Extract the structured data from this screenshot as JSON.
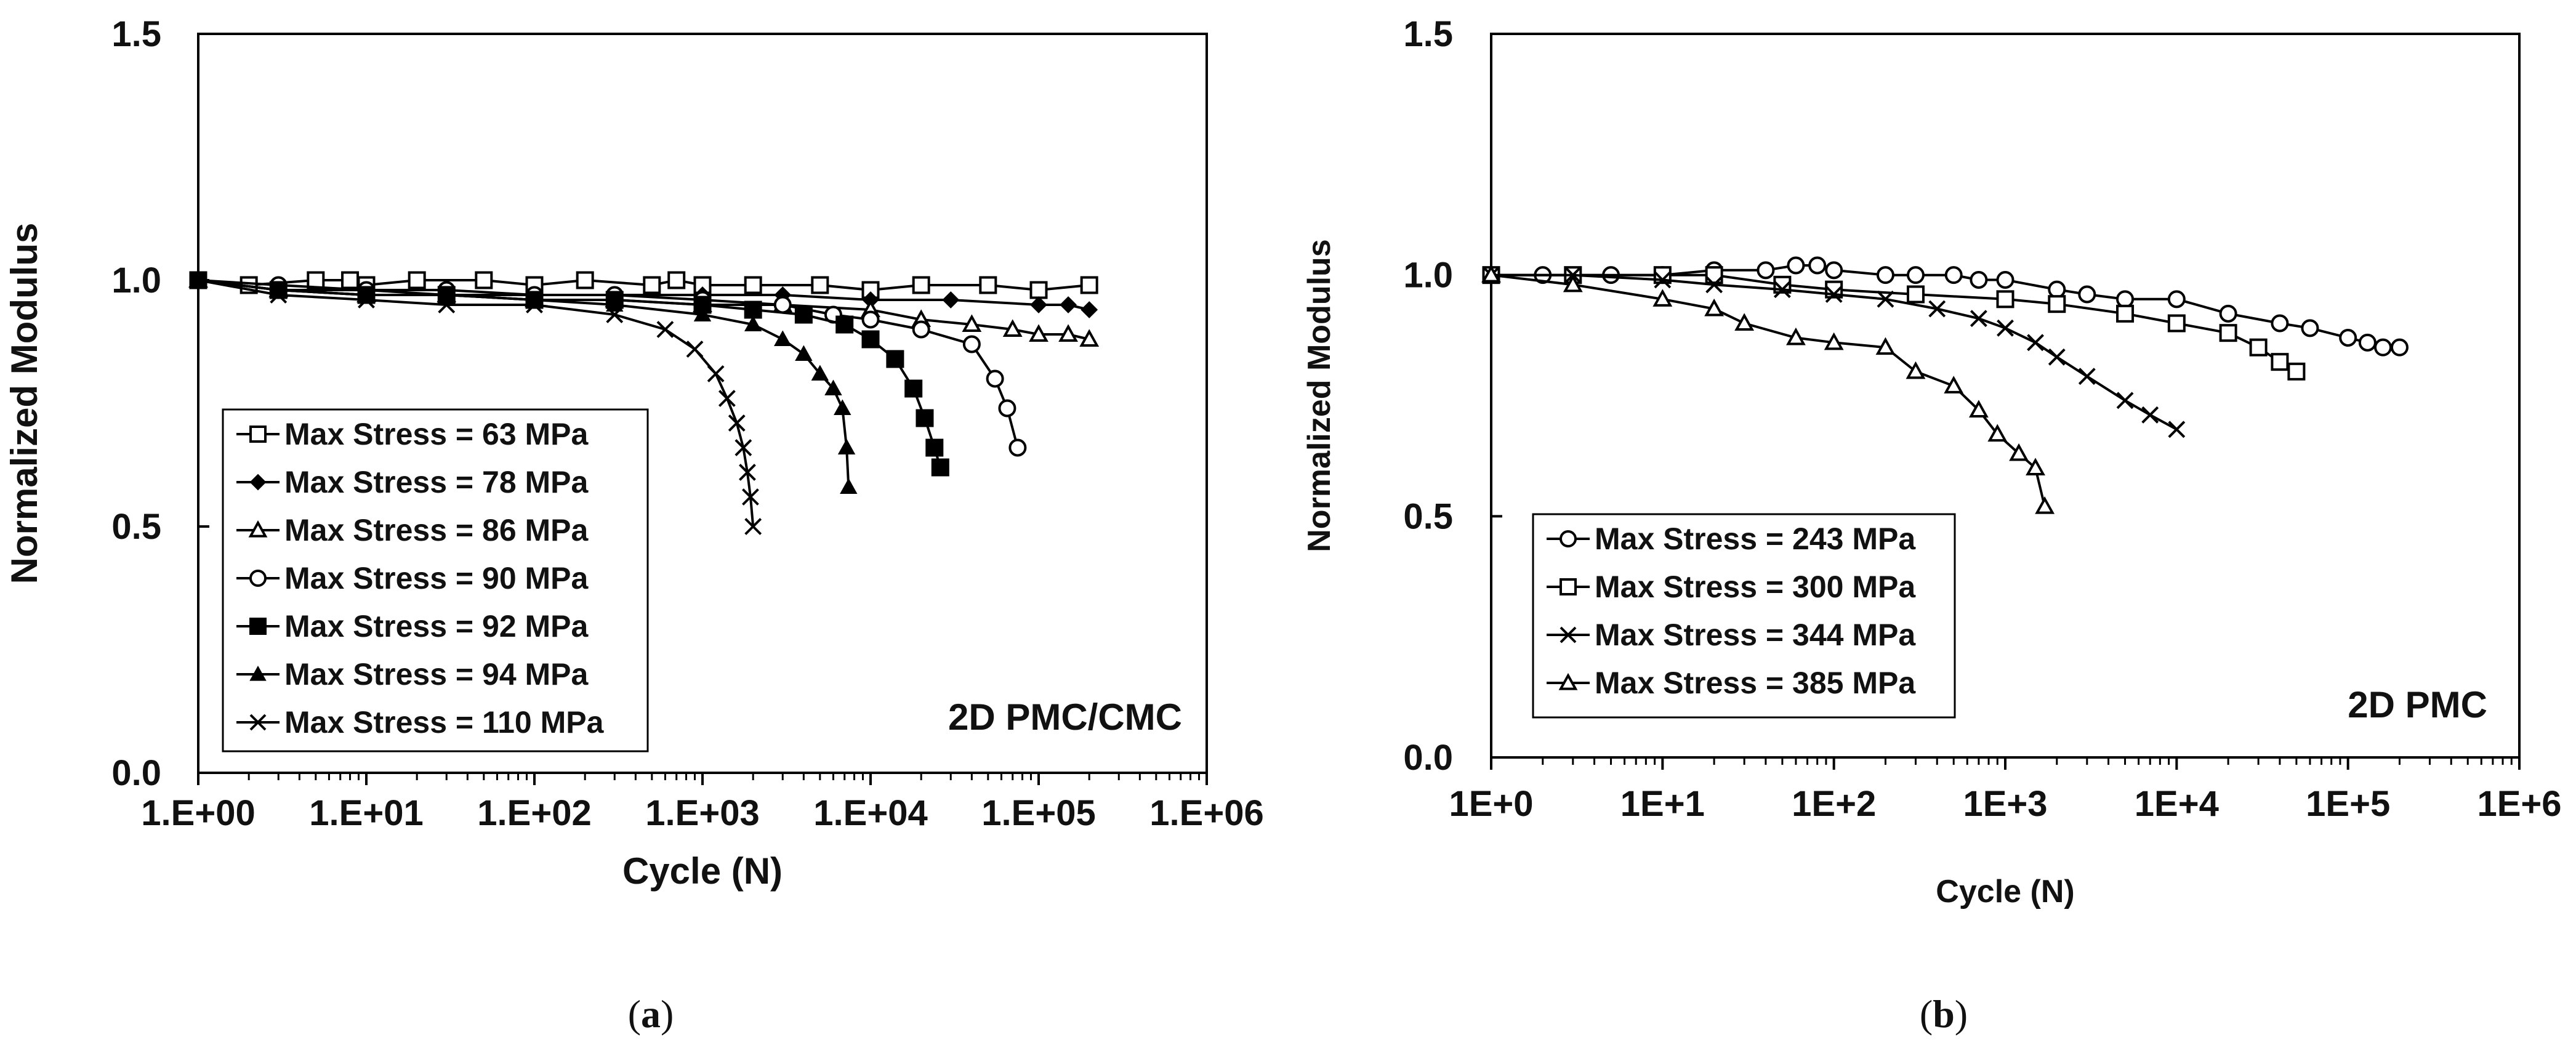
{
  "chart_data": [
    {
      "type": "line",
      "panel_label": "a",
      "xlabel": "Cycle (N)",
      "ylabel": "Normalized Modulus",
      "xscale": "log",
      "xlim": [
        1,
        1000000
      ],
      "ylim": [
        0.0,
        1.5
      ],
      "xticks": [
        1,
        10,
        100,
        1000,
        10000,
        100000,
        1000000
      ],
      "xtick_labels": [
        "1.E+00",
        "1.E+01",
        "1.E+02",
        "1.E+03",
        "1.E+04",
        "1.E+05",
        "1.E+06"
      ],
      "yticks": [
        0.0,
        0.5,
        1.0,
        1.5
      ],
      "ytick_labels": [
        "0.0",
        "0.5",
        "1.0",
        "1.5"
      ],
      "annotation": "2D PMC/CMC",
      "legend_position": "bottom-left",
      "series": [
        {
          "name": "Max Stress = 63 MPa",
          "marker": "open-square",
          "x": [
            1,
            2,
            5,
            8,
            10,
            20,
            50,
            100,
            200,
            500,
            700,
            1000,
            2000,
            5000,
            10000,
            20000,
            50000,
            100000,
            200000
          ],
          "y": [
            1.0,
            0.99,
            1.0,
            1.0,
            0.99,
            1.0,
            1.0,
            0.99,
            1.0,
            0.99,
            1.0,
            0.99,
            0.99,
            0.99,
            0.98,
            0.99,
            0.99,
            0.98,
            0.99
          ]
        },
        {
          "name": "Max Stress = 78 MPa",
          "marker": "filled-diamond",
          "x": [
            1,
            3,
            10,
            30,
            100,
            300,
            1000,
            3000,
            10000,
            30000,
            100000,
            150000,
            200000
          ],
          "y": [
            1.0,
            0.98,
            0.98,
            0.97,
            0.97,
            0.97,
            0.97,
            0.97,
            0.96,
            0.96,
            0.95,
            0.95,
            0.94
          ]
        },
        {
          "name": "Max Stress = 86 MPa",
          "marker": "open-triangle",
          "x": [
            1,
            3,
            10,
            30,
            100,
            300,
            1000,
            3000,
            10000,
            20000,
            40000,
            70000,
            100000,
            150000,
            200000
          ],
          "y": [
            1.0,
            0.98,
            0.97,
            0.97,
            0.96,
            0.96,
            0.95,
            0.95,
            0.94,
            0.92,
            0.91,
            0.9,
            0.89,
            0.89,
            0.88
          ]
        },
        {
          "name": "Max Stress = 90 MPa",
          "marker": "open-circle",
          "x": [
            1,
            3,
            10,
            30,
            100,
            300,
            1000,
            3000,
            6000,
            10000,
            20000,
            40000,
            55000,
            65000,
            75000
          ],
          "y": [
            1.0,
            0.99,
            0.98,
            0.98,
            0.97,
            0.97,
            0.96,
            0.95,
            0.93,
            0.92,
            0.9,
            0.87,
            0.8,
            0.74,
            0.66
          ]
        },
        {
          "name": "Max Stress = 92 MPa",
          "marker": "filled-square",
          "x": [
            1,
            3,
            10,
            30,
            100,
            300,
            1000,
            2000,
            4000,
            7000,
            10000,
            14000,
            18000,
            21000,
            24000,
            26000
          ],
          "y": [
            1.0,
            0.98,
            0.97,
            0.97,
            0.96,
            0.96,
            0.95,
            0.94,
            0.93,
            0.91,
            0.88,
            0.84,
            0.78,
            0.72,
            0.66,
            0.62
          ]
        },
        {
          "name": "Max Stress = 94 MPa",
          "marker": "filled-triangle",
          "x": [
            1,
            3,
            10,
            30,
            100,
            300,
            1000,
            2000,
            3000,
            4000,
            5000,
            6000,
            6800,
            7200,
            7400
          ],
          "y": [
            1.0,
            0.98,
            0.97,
            0.97,
            0.96,
            0.95,
            0.93,
            0.91,
            0.88,
            0.85,
            0.81,
            0.78,
            0.74,
            0.66,
            0.58
          ]
        },
        {
          "name": "Max Stress = 110 MPa",
          "marker": "x",
          "x": [
            1,
            3,
            10,
            30,
            100,
            300,
            600,
            900,
            1200,
            1400,
            1600,
            1750,
            1850,
            1930,
            2000
          ],
          "y": [
            1.0,
            0.97,
            0.96,
            0.95,
            0.95,
            0.93,
            0.9,
            0.86,
            0.81,
            0.76,
            0.71,
            0.66,
            0.61,
            0.56,
            0.5
          ]
        }
      ]
    },
    {
      "type": "line",
      "panel_label": "b",
      "xlabel": "Cycle (N)",
      "ylabel": "Normalized Modulus",
      "xscale": "log",
      "xlim": [
        1,
        1000000
      ],
      "ylim": [
        0.0,
        1.5
      ],
      "xticks": [
        1,
        10,
        100,
        1000,
        10000,
        100000,
        1000000
      ],
      "xtick_labels": [
        "1E+0",
        "1E+1",
        "1E+2",
        "1E+3",
        "1E+4",
        "1E+5",
        "1E+6"
      ],
      "yticks": [
        0.0,
        0.5,
        1.0,
        1.5
      ],
      "ytick_labels": [
        "0.0",
        "0.5",
        "1.0",
        "1.5"
      ],
      "annotation": "2D PMC",
      "legend_position": "bottom-left",
      "series": [
        {
          "name": "Max Stress = 243 MPa",
          "marker": "open-circle",
          "x": [
            1,
            2,
            5,
            10,
            20,
            40,
            60,
            80,
            100,
            200,
            300,
            500,
            700,
            1000,
            2000,
            3000,
            5000,
            10000,
            20000,
            40000,
            60000,
            100000,
            130000,
            160000,
            200000
          ],
          "y": [
            1.0,
            1.0,
            1.0,
            1.0,
            1.01,
            1.01,
            1.02,
            1.02,
            1.01,
            1.0,
            1.0,
            1.0,
            0.99,
            0.99,
            0.97,
            0.96,
            0.95,
            0.95,
            0.92,
            0.9,
            0.89,
            0.87,
            0.86,
            0.85,
            0.85
          ]
        },
        {
          "name": "Max Stress = 300 MPa",
          "marker": "open-square",
          "x": [
            1,
            3,
            10,
            20,
            50,
            100,
            300,
            1000,
            2000,
            5000,
            10000,
            20000,
            30000,
            40000,
            50000
          ],
          "y": [
            1.0,
            1.0,
            1.0,
            1.0,
            0.98,
            0.97,
            0.96,
            0.95,
            0.94,
            0.92,
            0.9,
            0.88,
            0.85,
            0.82,
            0.8
          ]
        },
        {
          "name": "Max Stress = 344 MPa",
          "marker": "x",
          "x": [
            1,
            3,
            10,
            20,
            50,
            100,
            200,
            400,
            700,
            1000,
            1500,
            2000,
            3000,
            5000,
            7000,
            10000
          ],
          "y": [
            1.0,
            1.0,
            0.99,
            0.98,
            0.97,
            0.96,
            0.95,
            0.93,
            0.91,
            0.89,
            0.86,
            0.83,
            0.79,
            0.74,
            0.71,
            0.68
          ]
        },
        {
          "name": "Max Stress = 385 MPa",
          "marker": "open-triangle",
          "x": [
            1,
            3,
            10,
            20,
            30,
            60,
            100,
            200,
            300,
            500,
            700,
            900,
            1200,
            1500,
            1700
          ],
          "y": [
            1.0,
            0.98,
            0.95,
            0.93,
            0.9,
            0.87,
            0.86,
            0.85,
            0.8,
            0.77,
            0.72,
            0.67,
            0.63,
            0.6,
            0.52
          ]
        }
      ]
    }
  ]
}
